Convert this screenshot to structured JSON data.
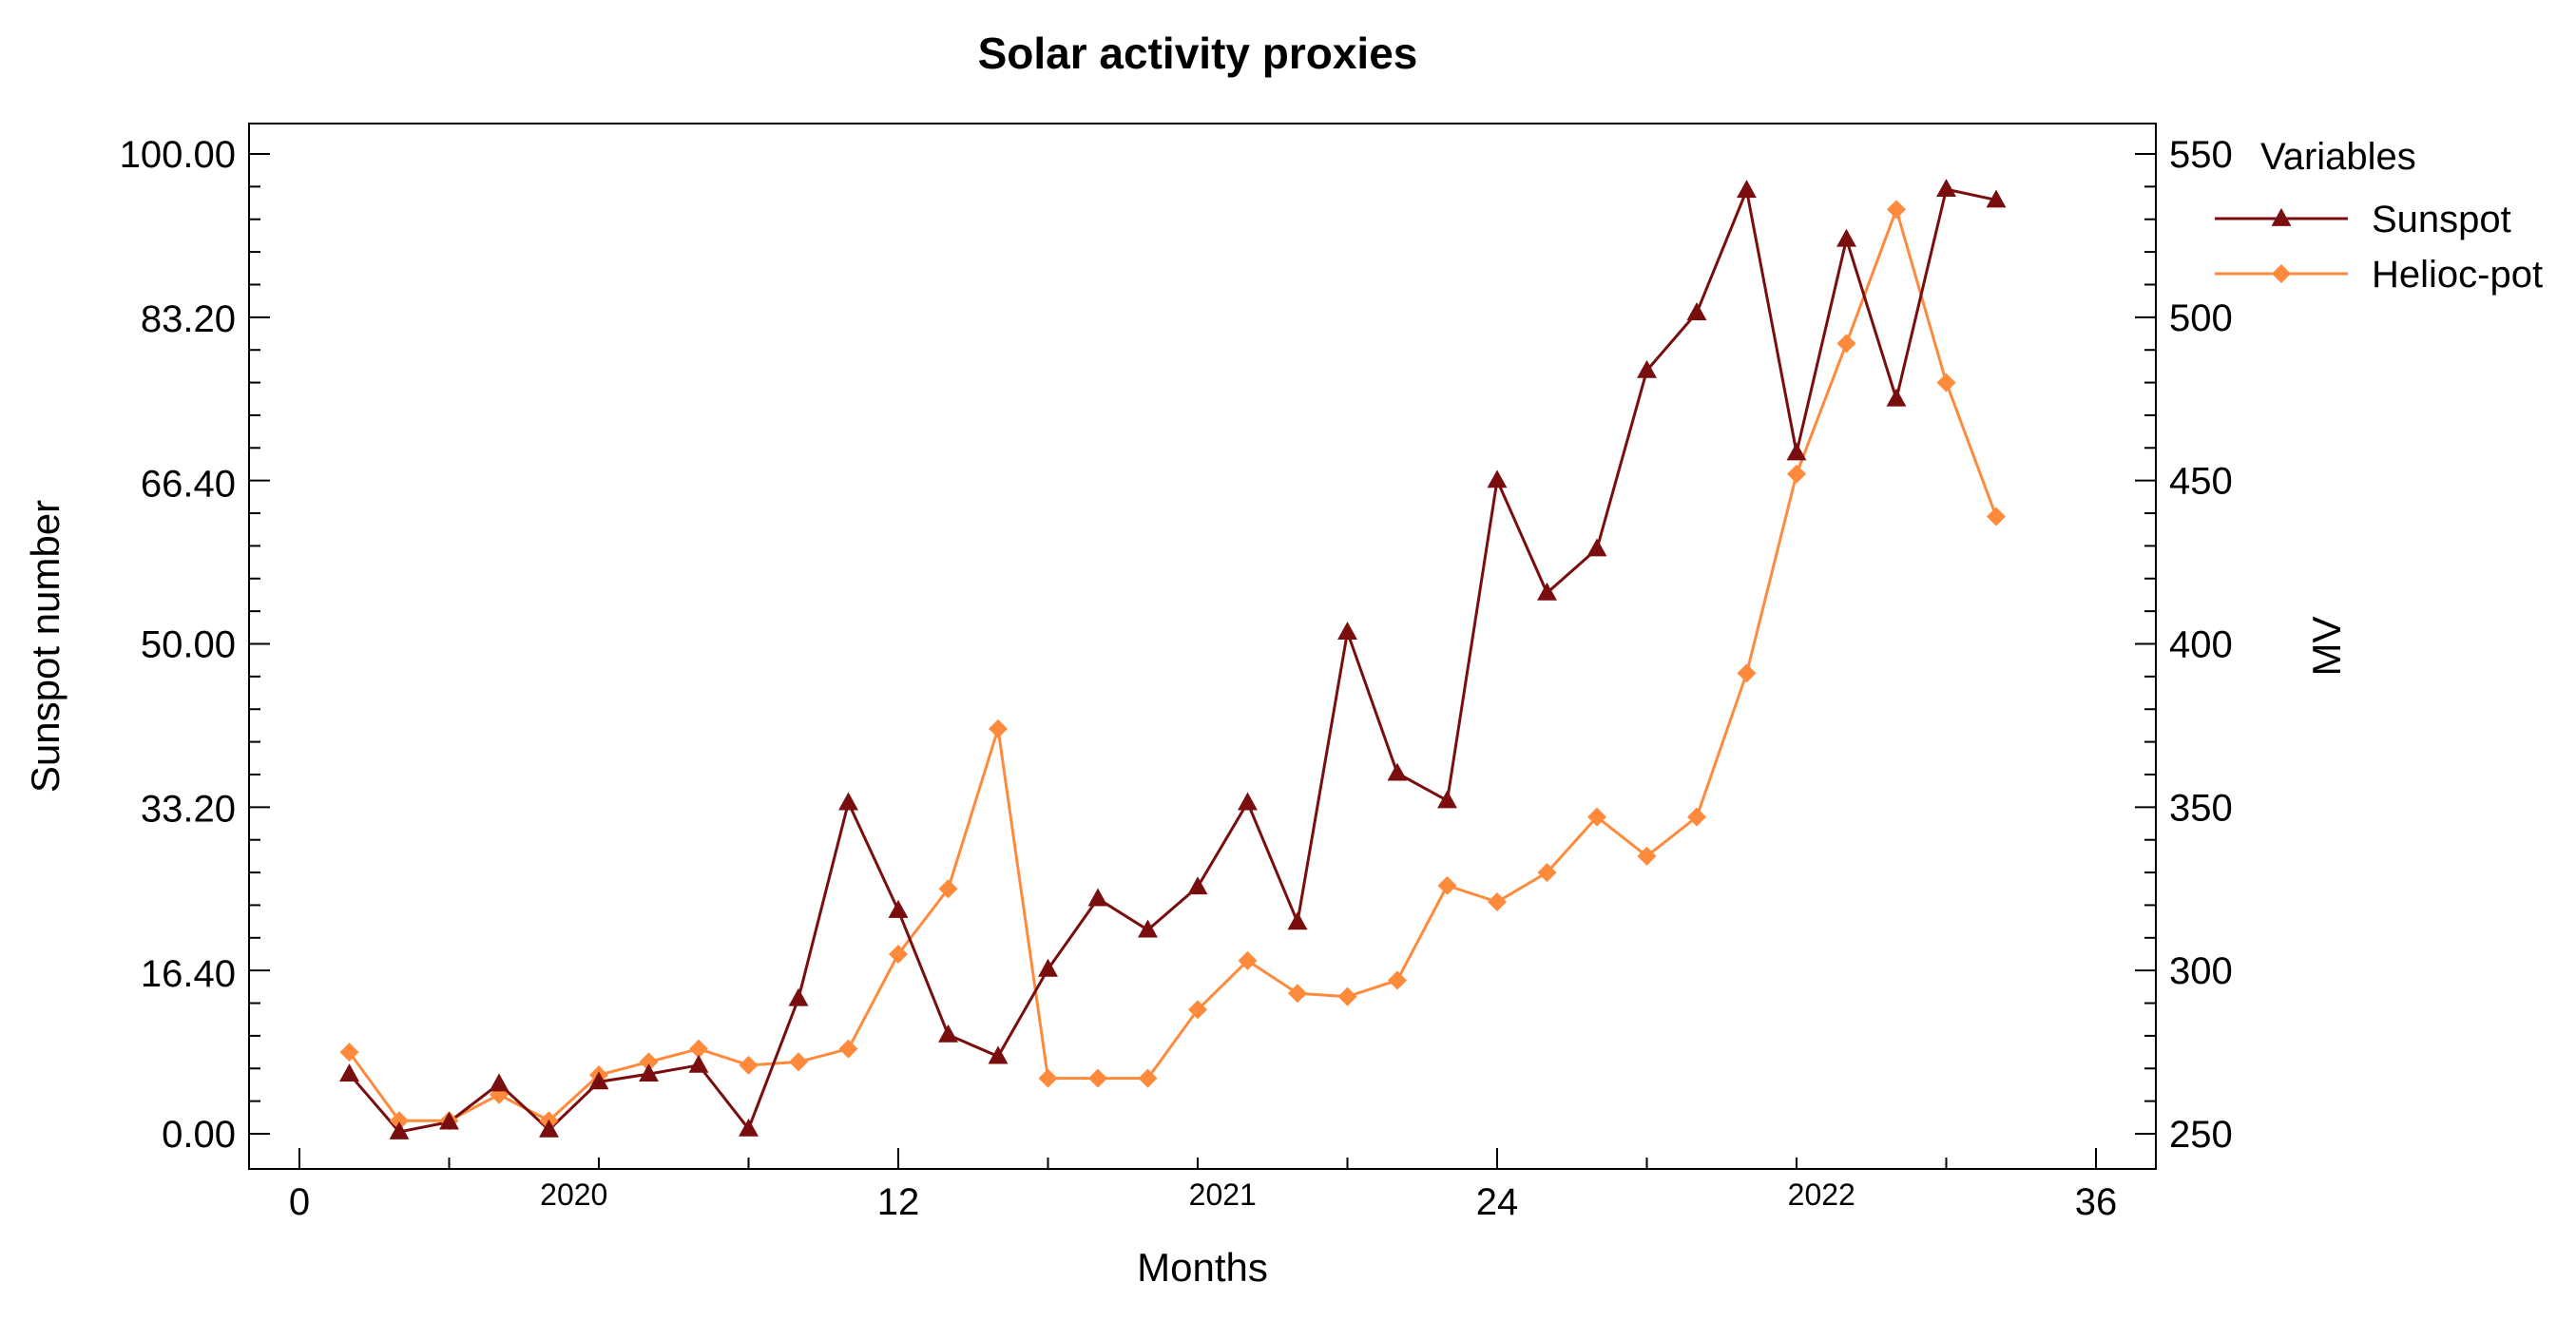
{
  "chart_data": {
    "type": "line",
    "title": "Solar activity proxies",
    "xlabel": "Months",
    "ylabel": "Sunspot number",
    "y2label": "MV",
    "xlim": [
      0,
      36
    ],
    "x_ticks": [
      0,
      12,
      24,
      36
    ],
    "x_tick_labels": [
      "0",
      "12",
      "24",
      "36"
    ],
    "year_labels": [
      {
        "x": 5.5,
        "label": "2020"
      },
      {
        "x": 18.5,
        "label": "2021"
      },
      {
        "x": 30.5,
        "label": "2022"
      }
    ],
    "ylim": [
      0,
      100
    ],
    "y_ticks": [
      0,
      16.4,
      33.2,
      50,
      66.4,
      83.2,
      100
    ],
    "y_tick_labels": [
      "0.00",
      "16.40",
      "33.20",
      "50.00",
      "66.40",
      "83.20",
      "100.00"
    ],
    "y2lim": [
      250,
      550
    ],
    "y2_ticks": [
      250,
      300,
      350,
      400,
      450,
      500,
      550
    ],
    "y2_tick_labels": [
      "250",
      "300",
      "350",
      "400",
      "450",
      "500",
      "550"
    ],
    "legend_title": "Variables",
    "legend_position": "top-right outside",
    "series": [
      {
        "name": "Sunspot",
        "axis": "left",
        "marker": "triangle",
        "color": "#7a0d0d",
        "x": [
          1,
          2,
          3,
          4,
          5,
          6,
          7,
          8,
          9,
          10,
          11,
          12,
          13,
          14,
          15,
          16,
          17,
          18,
          19,
          20,
          21,
          22,
          23,
          24,
          25,
          26,
          27,
          28,
          29,
          30,
          31,
          32,
          33,
          34
        ],
        "values": [
          6.1,
          0.2,
          1.2,
          5.1,
          0.4,
          5.3,
          6.1,
          7.0,
          0.5,
          13.8,
          33.8,
          22.8,
          10.1,
          7.9,
          16.8,
          24.0,
          20.8,
          25.2,
          33.8,
          21.6,
          51.2,
          36.8,
          34.0,
          66.7,
          55.2,
          59.7,
          77.9,
          83.8,
          96.3,
          69.5,
          91.3,
          75.0,
          96.4,
          95.3
        ]
      },
      {
        "name": "Helioc-pot",
        "axis": "right",
        "marker": "diamond",
        "color": "#ff8a3c",
        "x": [
          1,
          2,
          3,
          4,
          5,
          6,
          7,
          8,
          9,
          10,
          11,
          12,
          13,
          14,
          15,
          16,
          17,
          18,
          19,
          20,
          21,
          22,
          23,
          24,
          25,
          26,
          27,
          28,
          29,
          30,
          31,
          32,
          33,
          34
        ],
        "values": [
          275,
          254,
          254,
          262,
          254,
          268,
          272,
          276,
          271,
          272,
          276,
          305,
          325,
          374,
          267,
          267,
          267,
          288,
          303,
          293,
          292,
          297,
          326,
          321,
          330,
          347,
          335,
          347,
          391,
          452,
          492,
          533,
          480,
          439
        ]
      }
    ]
  },
  "colors": {
    "sunspot": "#7a0d0d",
    "helioc": "#ff8a3c",
    "axis": "#000000"
  }
}
